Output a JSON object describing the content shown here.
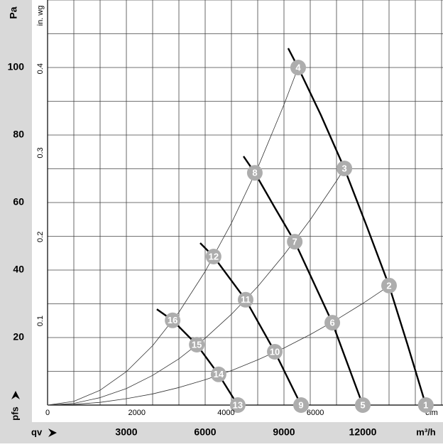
{
  "chart_data": {
    "type": "line",
    "y_label": "Pa",
    "y2_label": "in. wg",
    "x_label": "m³/h",
    "x2_label": "cfm",
    "y_symbol": "pfs",
    "x_symbol": "qv",
    "xlim": [
      0,
      15000
    ],
    "ylim": [
      0,
      120
    ],
    "x2lim": [
      0,
      8829
    ],
    "y2lim": [
      0,
      0.4817
    ],
    "xticks": [
      3000,
      6000,
      9000,
      12000
    ],
    "yticks": [
      20,
      40,
      60,
      80,
      100
    ],
    "x2ticks": [
      0,
      2000,
      4000,
      6000
    ],
    "y2ticks": [
      0.1,
      0.2,
      0.3,
      0.4
    ],
    "xgrid": [
      1000,
      2000,
      3000,
      4000,
      5000,
      6000,
      7000,
      8000,
      9000,
      10000,
      11000,
      12000,
      13000,
      14000,
      15000
    ],
    "ygrid": [
      10,
      20,
      30,
      40,
      50,
      60,
      70,
      80,
      90,
      100,
      110,
      120
    ],
    "grid": true,
    "series": [
      {
        "style": "thin",
        "color": "#333",
        "x": [
          0,
          1000,
          2000,
          3000,
          4000,
          5000,
          6000,
          7000,
          8000,
          9000,
          9540
        ],
        "values": [
          0,
          1.1,
          4.4,
          9.9,
          17.6,
          27.5,
          39.6,
          53.9,
          70.3,
          89.0,
          100
        ]
      },
      {
        "style": "thin",
        "color": "#333",
        "x": [
          0,
          1000,
          2000,
          3000,
          4000,
          5000,
          6000,
          7000,
          8000,
          9000,
          10000,
          11000,
          11300
        ],
        "values": [
          0,
          0.5,
          2.2,
          4.9,
          8.8,
          13.7,
          19.8,
          26.9,
          35.1,
          44.5,
          54.9,
          66.4,
          70.1
        ]
      },
      {
        "style": "thin",
        "color": "#333",
        "x": [
          0,
          1000,
          2000,
          3000,
          4000,
          5000,
          6000,
          7000,
          8000,
          9000,
          10000,
          11000,
          12000,
          13000
        ],
        "values": [
          0,
          0.2,
          0.8,
          1.9,
          3.3,
          5.2,
          7.5,
          10.2,
          13.4,
          16.9,
          20.9,
          25.3,
          30.1,
          35.3
        ]
      },
      {
        "style": "thick",
        "color": "#000",
        "x": [
          9160,
          9540,
          10400,
          11300,
          12150,
          13000,
          13700,
          14400
        ],
        "values": [
          105.7,
          100,
          86,
          70.1,
          53,
          35.4,
          18,
          0
        ]
      },
      {
        "style": "thick",
        "color": "#000",
        "x": [
          7460,
          7890,
          8650,
          9410,
          10840,
          12000
        ],
        "values": [
          73.7,
          68.8,
          58.5,
          48.4,
          24.4,
          0
        ]
      },
      {
        "style": "thick",
        "color": "#000",
        "x": [
          5810,
          6320,
          7540,
          8650,
          9650
        ],
        "values": [
          48,
          44,
          31.2,
          15.8,
          0
        ]
      },
      {
        "style": "thick",
        "color": "#000",
        "x": [
          4160,
          4760,
          5680,
          6510,
          7240
        ],
        "values": [
          28.4,
          25.1,
          17.9,
          9.1,
          0
        ]
      }
    ],
    "points": {
      "color": "#adadad",
      "labels": [
        "1",
        "2",
        "3",
        "4",
        "5",
        "6",
        "7",
        "8",
        "9",
        "10",
        "11",
        "12",
        "13",
        "14",
        "15",
        "16"
      ],
      "x": [
        14400,
        13000,
        11300,
        9540,
        12000,
        10840,
        9410,
        7890,
        9650,
        8650,
        7540,
        6320,
        7240,
        6510,
        5680,
        4760
      ],
      "values": [
        0,
        35.4,
        70.1,
        100,
        0,
        24.4,
        48.4,
        68.8,
        0,
        15.8,
        31.2,
        44,
        0,
        9.1,
        17.9,
        25.1
      ]
    }
  }
}
